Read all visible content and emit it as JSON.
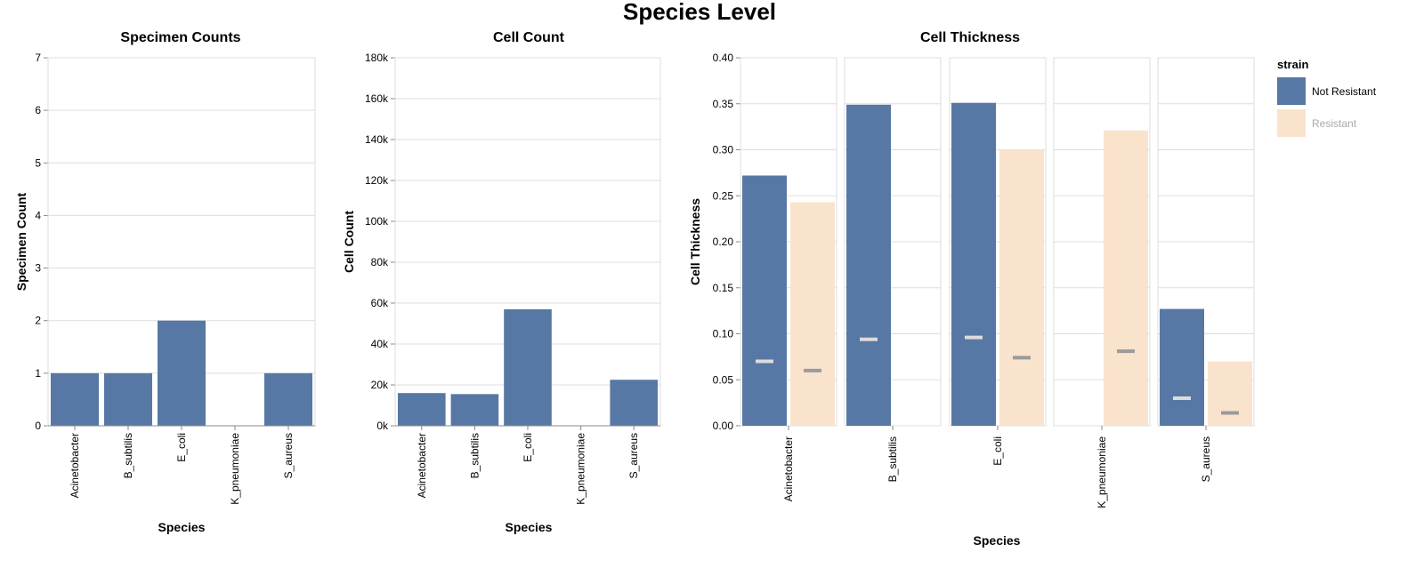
{
  "title": "Species Level",
  "colors": {
    "not_resistant": "#5778a4",
    "resistant": "#f9e3cc",
    "tick_mark_light": "#dcdcdc",
    "tick_mark_dark": "#9a9a9a",
    "legend_muted_text": "#aaaaaa"
  },
  "chart_data": [
    {
      "type": "bar",
      "title": "Specimen Counts",
      "xlabel": "Species",
      "ylabel": "Specimen Count",
      "categories": [
        "Acinetobacter",
        "B_subtilis",
        "E_coli",
        "K_pneumoniae",
        "S_aureus"
      ],
      "values": [
        1,
        1,
        2,
        0,
        1
      ],
      "ylim": [
        0,
        7
      ],
      "yticks": [
        0,
        1,
        2,
        3,
        4,
        5,
        6,
        7
      ],
      "ytick_labels": [
        "0",
        "1",
        "2",
        "3",
        "4",
        "5",
        "6",
        "7"
      ],
      "grid": true
    },
    {
      "type": "bar",
      "title": "Cell Count",
      "xlabel": "Species",
      "ylabel": "Cell Count",
      "categories": [
        "Acinetobacter",
        "B_subtilis",
        "E_coli",
        "K_pneumoniae",
        "S_aureus"
      ],
      "values": [
        16000,
        15500,
        57000,
        0,
        22500
      ],
      "ylim": [
        0,
        180000
      ],
      "yticks": [
        0,
        20000,
        40000,
        60000,
        80000,
        100000,
        120000,
        140000,
        160000,
        180000
      ],
      "ytick_labels": [
        "0k",
        "20k",
        "40k",
        "60k",
        "80k",
        "100k",
        "120k",
        "140k",
        "160k",
        "180k"
      ],
      "grid": true
    },
    {
      "type": "bar",
      "title": "Cell Thickness",
      "xlabel": "Species",
      "ylabel": "Cell Thickness",
      "facets": [
        "Acinetobacter",
        "B_subtilis",
        "E_coli",
        "K_pneumoniae",
        "S_aureus"
      ],
      "legend_title": "strain",
      "legend_position": "right",
      "series": [
        {
          "name": "Not Resistant",
          "values": [
            0.272,
            0.349,
            0.351,
            null,
            0.127
          ],
          "marks": [
            0.07,
            0.094,
            0.096,
            null,
            0.03
          ]
        },
        {
          "name": "Resistant",
          "values": [
            0.243,
            null,
            0.3,
            0.321,
            0.07
          ],
          "marks": [
            0.06,
            null,
            0.074,
            0.081,
            0.014
          ]
        }
      ],
      "ylim": [
        0,
        0.4
      ],
      "yticks": [
        0,
        0.05,
        0.1,
        0.15,
        0.2,
        0.25,
        0.3,
        0.35,
        0.4
      ],
      "ytick_labels": [
        "0.00",
        "0.05",
        "0.10",
        "0.15",
        "0.20",
        "0.25",
        "0.30",
        "0.35",
        "0.40"
      ],
      "grid": true
    }
  ]
}
